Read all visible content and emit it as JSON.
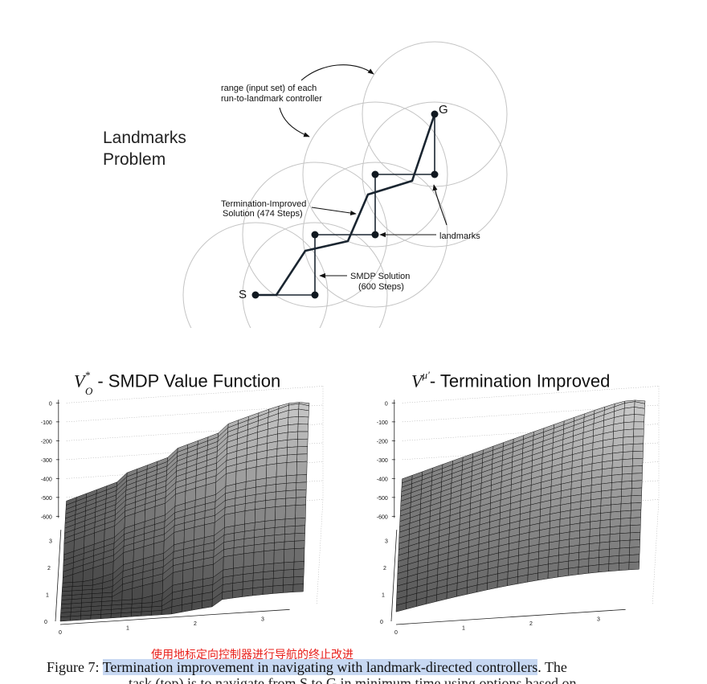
{
  "landmarks_panel": {
    "title_line1": "Landmarks",
    "title_line2": "Problem",
    "range_label_line1": "range (input set) of each",
    "range_label_line2": "run-to-landmark controller",
    "termination_label_line1": "Termination-Improved",
    "termination_label_line2": "Solution (474 Steps)",
    "smdp_label_line1": "SMDP Solution",
    "smdp_label_line2": "(600 Steps)",
    "landmarks_label": "landmarks",
    "start_label": "S",
    "goal_label": "G"
  },
  "plots": {
    "left_title_rest": "- SMDP Value Function",
    "right_title_rest": "- Termination Improved",
    "z_ticks": [
      "0",
      "-100",
      "-200",
      "-300",
      "-400",
      "-500",
      "-600"
    ],
    "y_ticks": [
      "0",
      "1",
      "2",
      "3"
    ],
    "x_ticks": [
      "0",
      "1",
      "2",
      "3"
    ]
  },
  "annotation_zh": "使用地标定向控制器进行导航的终止改进",
  "caption": {
    "prefix": "Figure 7: ",
    "highlight": "Termination improvement in navigating with landmark-directed controllers",
    "suffix": ". The",
    "line2": "task (top) is to navigate from S to G in minimum time using options based on"
  }
}
